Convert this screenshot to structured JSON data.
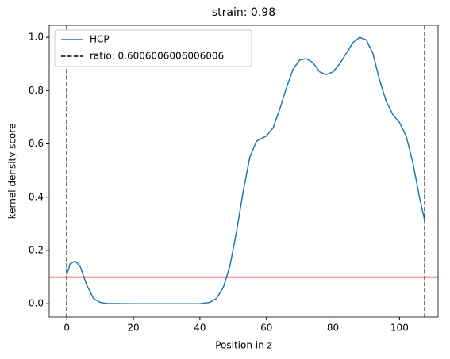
{
  "chart_data": {
    "type": "line",
    "title": "strain: 0.98",
    "x_label": "Position in z",
    "y_label": "kernel density score",
    "series": [
      {
        "name": "HCP",
        "color": "#1f77b4",
        "x": [
          0,
          1,
          2.5,
          4,
          6,
          8,
          10,
          12,
          20,
          40,
          43,
          45,
          47,
          49,
          51,
          53,
          55,
          57,
          60,
          62,
          64,
          66,
          68,
          70,
          72,
          74,
          76,
          78,
          80,
          82,
          84,
          86,
          88,
          90,
          92,
          94,
          96,
          98,
          100,
          102,
          104,
          106,
          107.6
        ],
        "values": [
          0.11,
          0.15,
          0.16,
          0.14,
          0.07,
          0.02,
          0.005,
          0.001,
          0,
          0,
          0.005,
          0.02,
          0.06,
          0.14,
          0.27,
          0.42,
          0.55,
          0.61,
          0.63,
          0.66,
          0.73,
          0.81,
          0.88,
          0.915,
          0.92,
          0.905,
          0.87,
          0.86,
          0.87,
          0.9,
          0.94,
          0.98,
          1.0,
          0.99,
          0.94,
          0.84,
          0.76,
          0.71,
          0.68,
          0.63,
          0.53,
          0.4,
          0.31
        ]
      }
    ],
    "vlines": {
      "name": "ratio: 0.6006006006006006",
      "color": "#000000",
      "x": [
        0,
        107.6
      ]
    },
    "hline": {
      "value": 0.1,
      "color": "#e00000"
    },
    "xlim": [
      -5.3,
      111.6
    ],
    "ylim": [
      -0.05,
      1.045
    ],
    "xticks": [
      0,
      20,
      40,
      60,
      80,
      100
    ],
    "yticks": [
      {
        "value": 0,
        "label": "0.0"
      },
      0.2,
      0.4,
      0.6,
      0.8,
      {
        "value": 1,
        "label": "1.0"
      }
    ],
    "legend": "upper left"
  }
}
